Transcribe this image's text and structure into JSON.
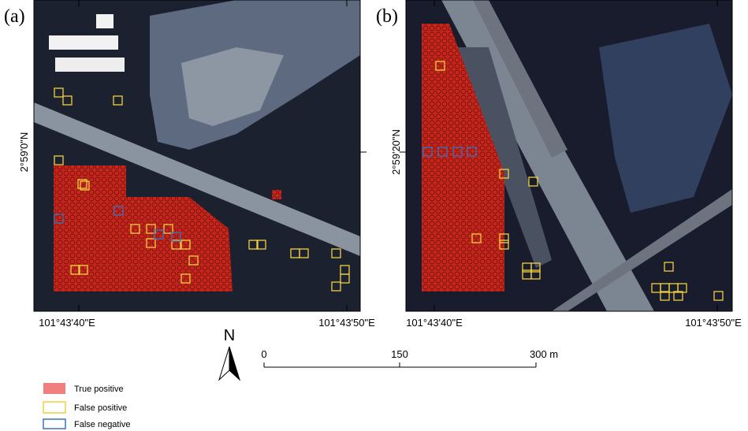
{
  "panels": [
    {
      "label": "(a)",
      "x_labels": [
        "101°43'40\"E",
        "101°43'50\"E"
      ],
      "y_label": "2°59'0\"N"
    },
    {
      "label": "(b)",
      "x_labels": [
        "101°43'40\"E",
        "101°43'50\"E"
      ],
      "y_label": "2°59'20\"N"
    }
  ],
  "north_arrow": "N",
  "scale_bar": {
    "labels": [
      "0",
      "150",
      "300 m"
    ]
  },
  "legend": [
    {
      "label": "True positive"
    },
    {
      "label": "False positive"
    },
    {
      "label": "False negative"
    }
  ]
}
